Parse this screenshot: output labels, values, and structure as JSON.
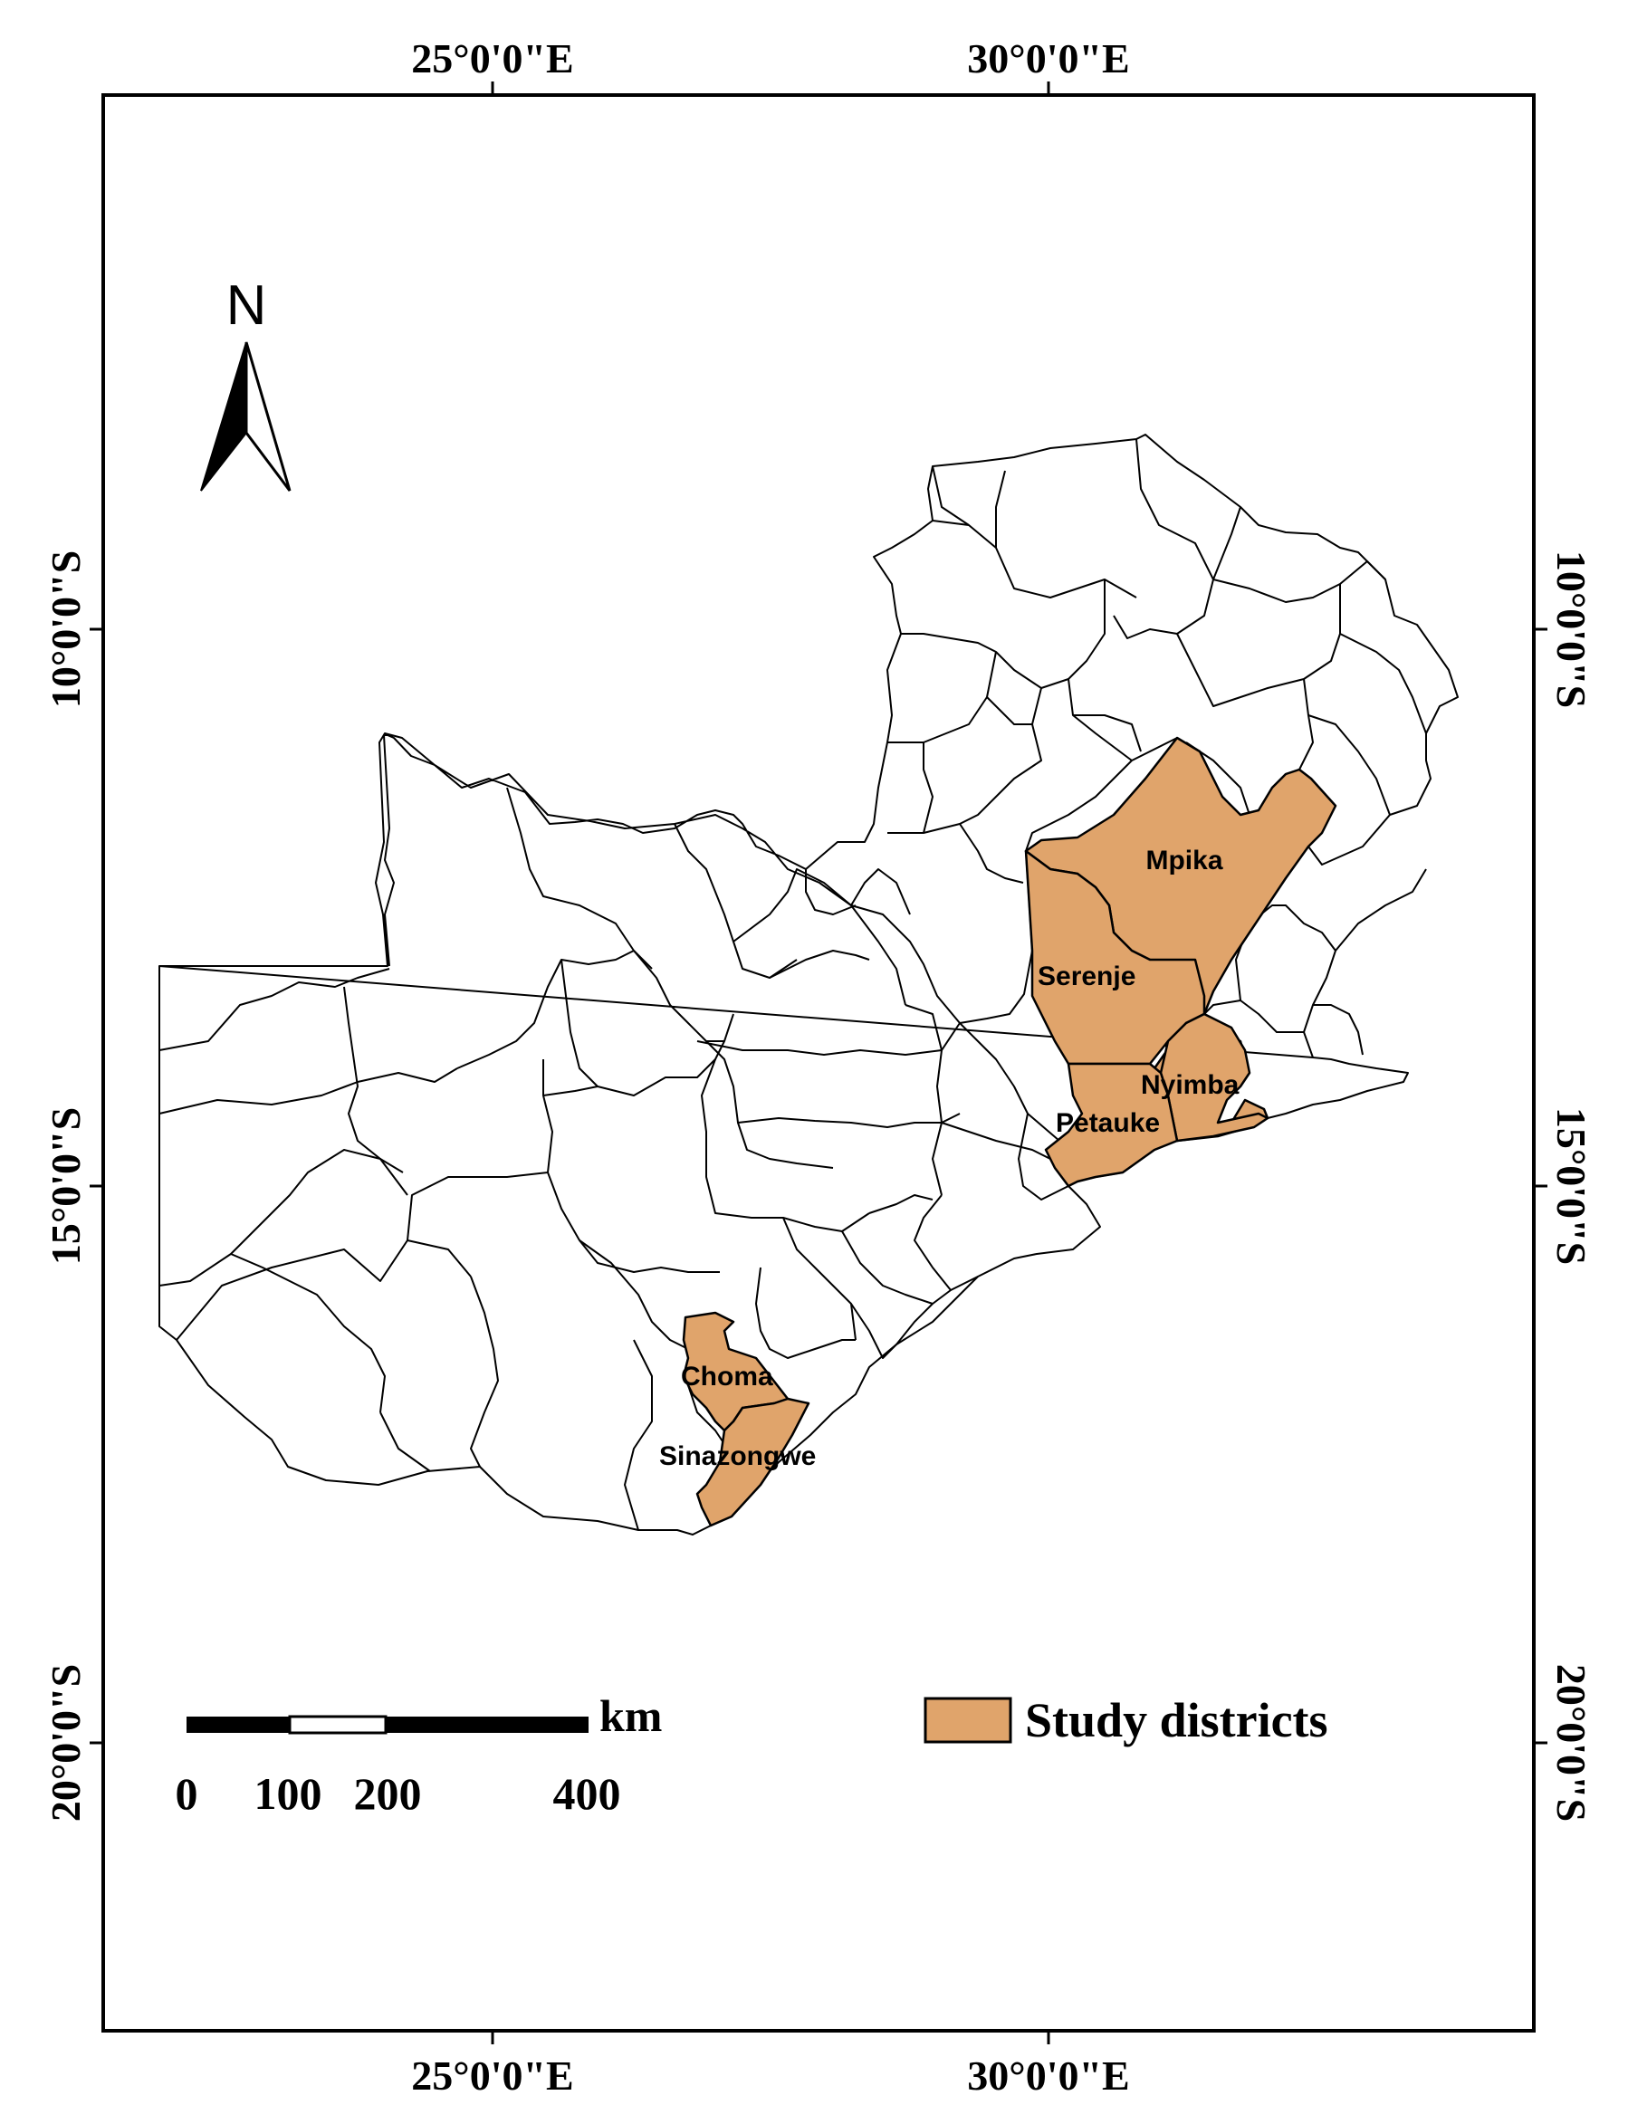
{
  "map": {
    "top_labels": [
      "25°0'0\"E",
      "30°0'0\"E"
    ],
    "bottom_labels": [
      "25°0'0\"E",
      "30°0'0\"E"
    ],
    "left_labels": [
      "10°0'0\"S",
      "15°0'0\"S",
      "20°0'0\"S"
    ],
    "right_labels": [
      "10°0'0\"S",
      "15°0'0\"S",
      "20°0'0\"S"
    ],
    "north_arrow": {
      "letter": "N",
      "icon": "north-arrow-icon"
    },
    "districts": {
      "mpika": "Mpika",
      "serenje": "Serenje",
      "nyimba": "Nyimba",
      "petauke": "Petauke",
      "choma": "Choma",
      "sinazongwe": "Sinazongwe"
    },
    "scale_bar": {
      "unit": "km",
      "ticks": [
        "0",
        "100",
        "200",
        "400"
      ]
    },
    "legend": {
      "label": "Study districts",
      "color": "#E0A46B"
    }
  }
}
